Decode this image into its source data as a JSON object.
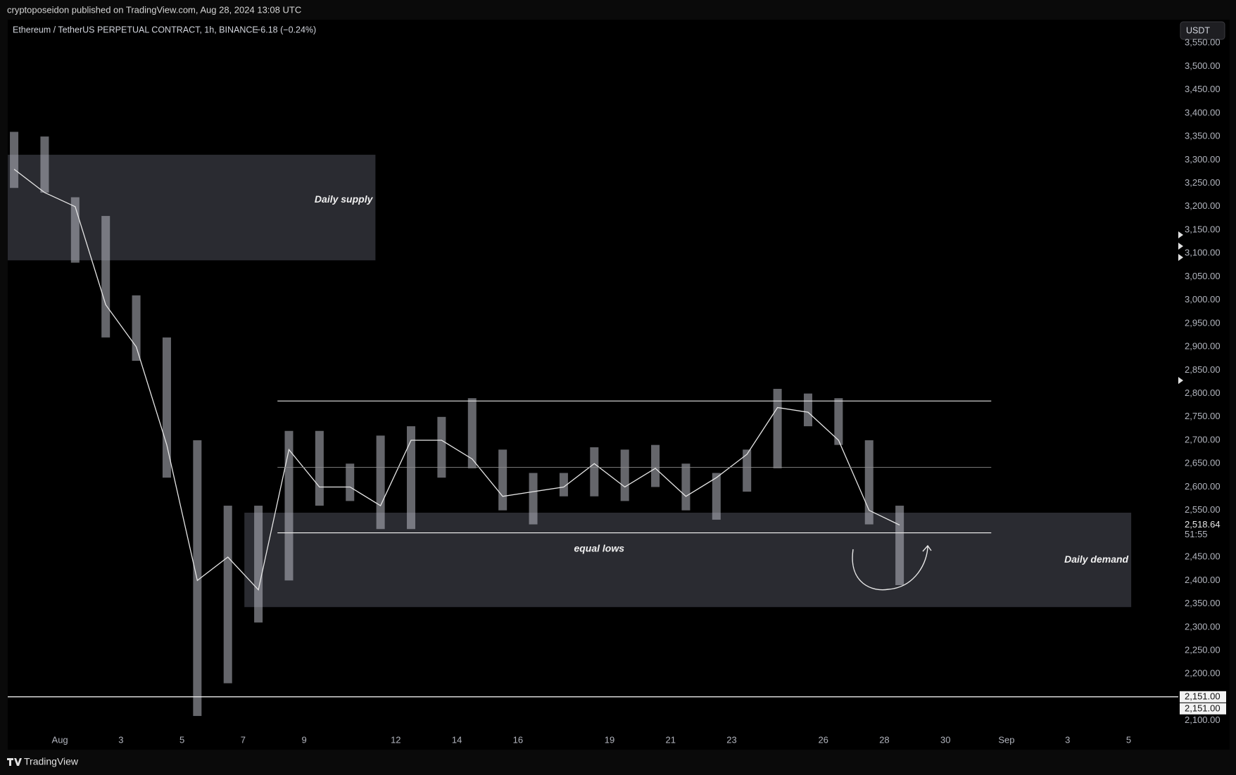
{
  "chart_data": {
    "type": "hlc",
    "header": "cryptoposeidon published on TradingView.com, Aug 28, 2024 13:08 UTC",
    "title": "Ethereum / TetherUS PERPETUAL CONTRACT, 1h, BINANCE",
    "change": {
      "value": -6.18,
      "label": "−6.18 (−0.24%)"
    },
    "currency_button": "USDT",
    "footer": "TradingView",
    "color": "#b8bac2",
    "close_color": "#e6e6e6",
    "x": [
      "2024-07-30",
      "2024-07-31",
      "2024-08-01",
      "2024-08-02",
      "2024-08-03",
      "2024-08-04",
      "2024-08-05",
      "2024-08-06",
      "2024-08-07",
      "2024-08-08",
      "2024-08-09",
      "2024-08-10",
      "2024-08-11",
      "2024-08-12",
      "2024-08-13",
      "2024-08-14",
      "2024-08-15",
      "2024-08-16",
      "2024-08-17",
      "2024-08-18",
      "2024-08-19",
      "2024-08-20",
      "2024-08-21",
      "2024-08-22",
      "2024-08-23",
      "2024-08-24",
      "2024-08-25",
      "2024-08-26",
      "2024-08-27",
      "2024-08-28"
    ],
    "high": [
      3360,
      3350,
      3220,
      3180,
      3010,
      2920,
      2700,
      2560,
      2560,
      2720,
      2720,
      2650,
      2710,
      2730,
      2750,
      2790,
      2680,
      2630,
      2630,
      2685,
      2680,
      2690,
      2650,
      2630,
      2680,
      2810,
      2800,
      2790,
      2700,
      2560
    ],
    "low": [
      3240,
      3230,
      3080,
      2920,
      2870,
      2620,
      2110,
      2180,
      2310,
      2400,
      2560,
      2570,
      2510,
      2510,
      2620,
      2640,
      2550,
      2520,
      2580,
      2580,
      2570,
      2600,
      2550,
      2530,
      2590,
      2640,
      2730,
      2690,
      2520,
      2390
    ],
    "close": [
      3280,
      3230,
      3200,
      2990,
      2900,
      2690,
      2400,
      2450,
      2380,
      2680,
      2600,
      2600,
      2560,
      2700,
      2700,
      2660,
      2580,
      2590,
      2600,
      2650,
      2600,
      2640,
      2580,
      2620,
      2670,
      2770,
      2760,
      2700,
      2550,
      2518.64
    ],
    "last_price": {
      "value": 2518.64,
      "label": "2,518.64"
    },
    "countdown": "51:55",
    "xlim": [
      "2024-07-30T07:00",
      "2024-09-06T15:00"
    ],
    "xticks": [
      {
        "value": "2024-08-01",
        "label": "Aug"
      },
      {
        "value": "2024-08-03",
        "label": "3"
      },
      {
        "value": "2024-08-05",
        "label": "5"
      },
      {
        "value": "2024-08-07",
        "label": "7"
      },
      {
        "value": "2024-08-09",
        "label": "9"
      },
      {
        "value": "2024-08-12",
        "label": "12"
      },
      {
        "value": "2024-08-14",
        "label": "14"
      },
      {
        "value": "2024-08-16",
        "label": "16"
      },
      {
        "value": "2024-08-19",
        "label": "19"
      },
      {
        "value": "2024-08-21",
        "label": "21"
      },
      {
        "value": "2024-08-23",
        "label": "23"
      },
      {
        "value": "2024-08-26",
        "label": "26"
      },
      {
        "value": "2024-08-28",
        "label": "28"
      },
      {
        "value": "2024-08-30",
        "label": "30"
      },
      {
        "value": "2024-09-01",
        "label": "Sep"
      },
      {
        "value": "2024-09-03",
        "label": "3"
      },
      {
        "value": "2024-09-05",
        "label": "5"
      }
    ],
    "ylim": [
      2080,
      3600
    ],
    "yticks": [
      {
        "value": 2100,
        "label": "2,100.00"
      },
      {
        "value": 2150,
        "label": "2,150.00"
      },
      {
        "value": 2200,
        "label": "2,200.00"
      },
      {
        "value": 2250,
        "label": "2,250.00"
      },
      {
        "value": 2300,
        "label": "2,300.00"
      },
      {
        "value": 2350,
        "label": "2,350.00"
      },
      {
        "value": 2400,
        "label": "2,400.00"
      },
      {
        "value": 2450,
        "label": "2,450.00"
      },
      {
        "value": 2500,
        "label": "2,500.00"
      },
      {
        "value": 2550,
        "label": "2,550.00"
      },
      {
        "value": 2600,
        "label": "2,600.00"
      },
      {
        "value": 2650,
        "label": "2,650.00"
      },
      {
        "value": 2700,
        "label": "2,700.00"
      },
      {
        "value": 2750,
        "label": "2,750.00"
      },
      {
        "value": 2800,
        "label": "2,800.00"
      },
      {
        "value": 2850,
        "label": "2,850.00"
      },
      {
        "value": 2900,
        "label": "2,900.00"
      },
      {
        "value": 2950,
        "label": "2,950.00"
      },
      {
        "value": 3000,
        "label": "3,000.00"
      },
      {
        "value": 3050,
        "label": "3,050.00"
      },
      {
        "value": 3100,
        "label": "3,100.00"
      },
      {
        "value": 3150,
        "label": "3,150.00"
      },
      {
        "value": 3200,
        "label": "3,200.00"
      },
      {
        "value": 3250,
        "label": "3,250.00"
      },
      {
        "value": 3300,
        "label": "3,300.00"
      },
      {
        "value": 3350,
        "label": "3,350.00"
      },
      {
        "value": 3400,
        "label": "3,400.00"
      },
      {
        "value": 3450,
        "label": "3,450.00"
      },
      {
        "value": 3500,
        "label": "3,500.00"
      },
      {
        "value": 3550,
        "label": "3,550.00"
      }
    ],
    "zones": [
      {
        "label": "Daily supply",
        "x": [
          "2024-07-30T07:00",
          "2024-08-11T08:00"
        ],
        "y": [
          3085,
          3311
        ]
      },
      {
        "label": "Daily demand",
        "x": [
          "2024-08-07T01:00",
          "2024-09-05T02:00"
        ],
        "y": [
          2343,
          2545
        ]
      }
    ],
    "range_lines": [
      {
        "value": 2784,
        "x": [
          "2024-08-08T03:00",
          "2024-08-31T12:00"
        ]
      },
      {
        "value": 2642,
        "x": [
          "2024-08-08T03:00",
          "2024-08-31T12:00"
        ]
      },
      {
        "value": 2502,
        "x": [
          "2024-08-08T03:00",
          "2024-08-31T12:00"
        ],
        "label": "equal lows"
      }
    ],
    "horizontal_lines": [
      {
        "value": 2151,
        "label": "2,151.00"
      },
      {
        "value": 2151,
        "label": "2,151.00"
      }
    ]
  }
}
